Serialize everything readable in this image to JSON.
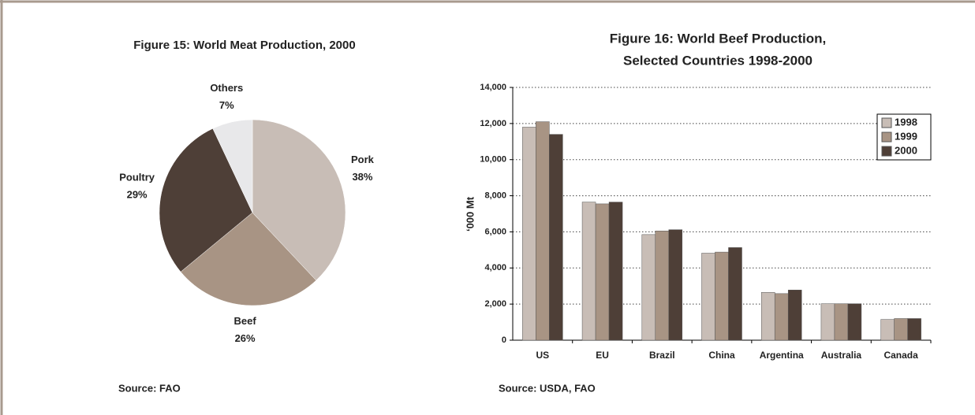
{
  "chart_data": [
    {
      "type": "pie",
      "title": "Figure 15: World Meat Production, 2000",
      "categories": [
        "Pork",
        "Beef",
        "Poultry",
        "Others"
      ],
      "values": [
        38,
        26,
        29,
        7
      ],
      "value_labels": [
        "38%",
        "26%",
        "29%",
        "7%"
      ],
      "colors": [
        "#c8bdb6",
        "#a89484",
        "#4e3f37",
        "#e8e8ea"
      ],
      "source": "Source: FAO"
    },
    {
      "type": "bar",
      "title": [
        "Figure 16: World Beef Production,",
        "Selected Countries 1998-2000"
      ],
      "ylabel": "‘000 Mt",
      "categories": [
        "US",
        "EU",
        "Brazil",
        "China",
        "Argentina",
        "Australia",
        "Canada"
      ],
      "series": [
        {
          "name": "1998",
          "color": "#c8bdb6",
          "values": [
            11800,
            7650,
            5850,
            4820,
            2650,
            2020,
            1150
          ]
        },
        {
          "name": "1999",
          "color": "#a89484",
          "values": [
            12100,
            7550,
            6050,
            4880,
            2580,
            2020,
            1200
          ]
        },
        {
          "name": "2000",
          "color": "#4e3f37",
          "values": [
            11400,
            7650,
            6120,
            5130,
            2780,
            2020,
            1200
          ]
        }
      ],
      "ylim": [
        0,
        14000
      ],
      "yticks": [
        0,
        {
          "value": 2000,
          "label": "2,000"
        },
        {
          "value": 4000,
          "label": "4,000"
        },
        {
          "value": 6000,
          "label": "6,000"
        },
        {
          "value": 8000,
          "label": "8,000"
        },
        {
          "value": 10000,
          "label": "10,000"
        },
        {
          "value": 12000,
          "label": "12,000"
        },
        {
          "value": 14000,
          "label": "14,000"
        }
      ],
      "grid": true,
      "legend": "top-right",
      "source": "Source: USDA, FAO"
    }
  ]
}
